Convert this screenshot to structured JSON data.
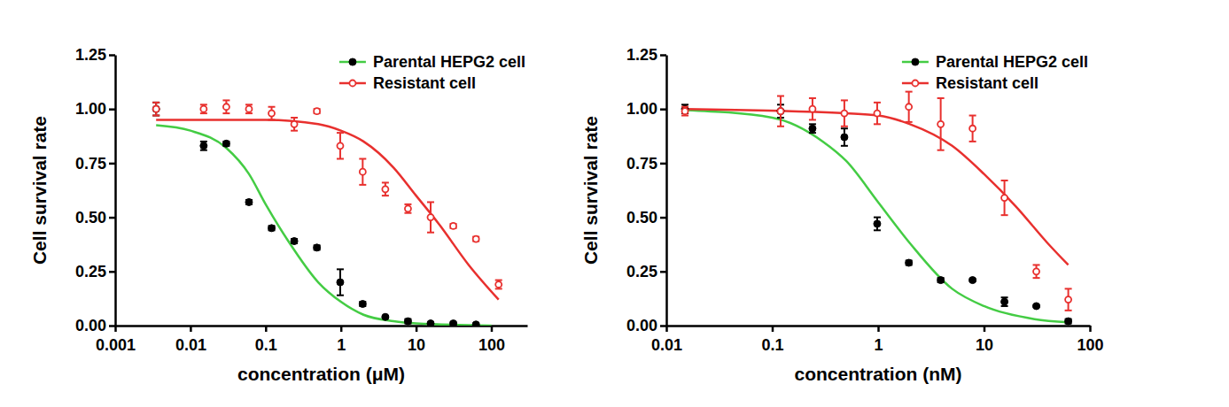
{
  "chart_data": [
    {
      "type": "scatter",
      "xlabel": "concentration (μM)",
      "ylabel": "Cell survival rate",
      "log": "x",
      "grid": false,
      "legend": "upper right",
      "xlim": [
        0.001,
        300
      ],
      "xticks": [
        0.001,
        0.01,
        0.1,
        1,
        10,
        100
      ],
      "ylim": [
        0,
        1.25
      ],
      "yticks": [
        {
          "value": 0,
          "label": "0.00"
        },
        {
          "value": 0.25,
          "label": "0.25"
        },
        {
          "value": 0.5,
          "label": "0.50"
        },
        {
          "value": 0.75,
          "label": "0.75"
        },
        {
          "value": 1,
          "label": "1.00"
        },
        {
          "value": 1.25,
          "label": "1.25"
        }
      ],
      "series": [
        {
          "name": "Parental HEPG2 cell",
          "color": "#000000",
          "marker": "circle",
          "x": [
            0.0035,
            0.015,
            0.03,
            0.06,
            0.12,
            0.24,
            0.48,
            0.98,
            1.95,
            3.9,
            7.8,
            15.6,
            31.2,
            62.5
          ],
          "values": [
            1.0,
            0.83,
            0.84,
            0.57,
            0.45,
            0.39,
            0.36,
            0.2,
            0.1,
            0.04,
            0.02,
            0.01,
            0.01,
            0.005
          ],
          "errors": [
            0.03,
            0.02,
            0.01,
            0.01,
            0.01,
            0.01,
            0.01,
            0.06,
            0.01,
            0.005,
            0.01,
            0.005,
            0.005,
            0.005
          ],
          "fit": {
            "color": "#44cc44",
            "x": [
              0.0035,
              0.01,
              0.03,
              0.06,
              0.1,
              0.2,
              0.5,
              1,
              2,
              5,
              10,
              100
            ],
            "values": [
              0.925,
              0.9,
              0.82,
              0.7,
              0.56,
              0.39,
              0.2,
              0.11,
              0.05,
              0.02,
              0.01,
              0.0
            ]
          }
        },
        {
          "name": "Resistant cell",
          "color": "#e8302e",
          "marker": "open-circle",
          "x": [
            0.0035,
            0.015,
            0.03,
            0.06,
            0.12,
            0.24,
            0.48,
            0.98,
            1.95,
            3.9,
            7.8,
            15.6,
            31.2,
            62.5,
            125
          ],
          "values": [
            1.0,
            1.0,
            1.01,
            1.0,
            0.98,
            0.93,
            0.99,
            0.83,
            0.71,
            0.63,
            0.54,
            0.5,
            0.46,
            0.4,
            0.19
          ],
          "errors": [
            0.03,
            0.02,
            0.03,
            0.02,
            0.03,
            0.03,
            0.01,
            0.06,
            0.06,
            0.03,
            0.02,
            0.07,
            0.01,
            0.01,
            0.02
          ],
          "fit": {
            "color": "#e8302e",
            "x": [
              0.0035,
              0.1,
              0.5,
              1,
              2,
              5,
              10,
              20,
              50,
              125
            ],
            "values": [
              0.95,
              0.95,
              0.93,
              0.9,
              0.85,
              0.73,
              0.6,
              0.47,
              0.28,
              0.12
            ]
          }
        }
      ]
    },
    {
      "type": "scatter",
      "xlabel": "concentration (nM)",
      "ylabel": "Cell survival rate",
      "log": "x",
      "grid": false,
      "legend": "upper right",
      "xlim": [
        0.01,
        100
      ],
      "xticks": [
        0.01,
        0.1,
        1,
        10,
        100
      ],
      "ylim": [
        0,
        1.25
      ],
      "yticks": [
        {
          "value": 0,
          "label": "0.00"
        },
        {
          "value": 0.25,
          "label": "0.25"
        },
        {
          "value": 0.5,
          "label": "0.50"
        },
        {
          "value": 0.75,
          "label": "0.75"
        },
        {
          "value": 1,
          "label": "1.00"
        },
        {
          "value": 1.25,
          "label": "1.25"
        }
      ],
      "series": [
        {
          "name": "Parental HEPG2 cell",
          "color": "#000000",
          "marker": "circle",
          "x": [
            0.015,
            0.12,
            0.24,
            0.48,
            0.98,
            1.95,
            3.9,
            7.8,
            15.6,
            31.2,
            62.5
          ],
          "values": [
            1.0,
            0.99,
            0.91,
            0.87,
            0.47,
            0.29,
            0.21,
            0.21,
            0.11,
            0.09,
            0.02
          ],
          "errors": [
            0.02,
            0.03,
            0.02,
            0.04,
            0.03,
            0.01,
            0.01,
            0.005,
            0.02,
            0.005,
            0.01
          ],
          "fit": {
            "color": "#44cc44",
            "x": [
              0.015,
              0.1,
              0.3,
              0.5,
              1,
              2,
              5,
              10,
              30,
              62.5
            ],
            "values": [
              0.995,
              0.96,
              0.85,
              0.76,
              0.57,
              0.38,
              0.17,
              0.09,
              0.03,
              0.015
            ]
          }
        },
        {
          "name": "Resistant cell",
          "color": "#e8302e",
          "marker": "open-circle",
          "x": [
            0.015,
            0.12,
            0.24,
            0.48,
            0.98,
            1.95,
            3.9,
            7.8,
            15.6,
            31.2,
            62.5
          ],
          "values": [
            0.99,
            0.99,
            1.0,
            0.98,
            0.98,
            1.01,
            0.93,
            0.91,
            0.59,
            0.25,
            0.12
          ],
          "errors": [
            0.02,
            0.07,
            0.05,
            0.06,
            0.05,
            0.07,
            0.12,
            0.06,
            0.08,
            0.03,
            0.05
          ],
          "fit": {
            "color": "#e8302e",
            "x": [
              0.015,
              0.5,
              1,
              2,
              5,
              10,
              20,
              40,
              62.5
            ],
            "values": [
              1.0,
              0.98,
              0.97,
              0.93,
              0.83,
              0.7,
              0.55,
              0.38,
              0.28
            ]
          }
        }
      ]
    }
  ]
}
